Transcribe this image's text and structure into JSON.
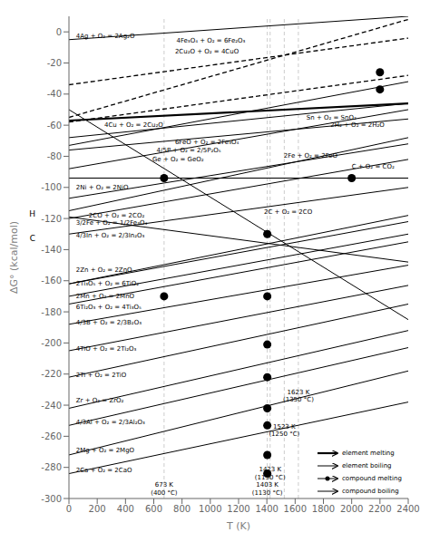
{
  "chart_data": {
    "type": "line",
    "xlabel": "T (K)",
    "ylabel": "ΔG° (kcal/mol)",
    "xlim": [
      0,
      2400
    ],
    "ylim": [
      -300,
      10
    ],
    "xticks": [
      0,
      200,
      400,
      600,
      800,
      1000,
      1200,
      1400,
      1600,
      1800,
      2000,
      2200,
      2400
    ],
    "yticks": [
      0,
      -20,
      -40,
      -60,
      -80,
      -100,
      -120,
      -140,
      -160,
      -180,
      -200,
      -220,
      -240,
      -260,
      -280,
      -300
    ],
    "grid": false,
    "color": "#000000",
    "series": [
      {
        "x": [
          0,
          2400
        ],
        "values": [
          -5,
          10
        ],
        "line_style": "solid"
      },
      {
        "x": [
          0,
          2400
        ],
        "values": [
          -34,
          -4
        ],
        "line_style": "dashed"
      },
      {
        "x": [
          0,
          2400
        ],
        "values": [
          -55,
          8
        ],
        "line_style": "dashed"
      },
      {
        "x": [
          0,
          2400
        ],
        "values": [
          -58,
          -28
        ],
        "line_style": "dashed"
      },
      {
        "x": [
          0,
          2400
        ],
        "values": [
          -73,
          -32
        ],
        "line_style": "solid"
      },
      {
        "x": [
          0,
          2400
        ],
        "values": [
          -68,
          -46
        ],
        "line_style": "solid"
      },
      {
        "x": [
          0,
          2400
        ],
        "values": [
          -57,
          -46
        ],
        "line_style": "bold"
      },
      {
        "x": [
          0,
          2400
        ],
        "values": [
          -76,
          -56
        ],
        "line_style": "solid"
      },
      {
        "x": [
          0,
          2400
        ],
        "values": [
          -88,
          -50
        ],
        "line_style": "solid"
      },
      {
        "x": [
          0,
          2400
        ],
        "values": [
          -115,
          -68
        ],
        "line_style": "solid"
      },
      {
        "x": [
          0,
          2400
        ],
        "values": [
          -94,
          -94
        ],
        "line_style": "solid"
      },
      {
        "x": [
          0,
          2400
        ],
        "values": [
          -107,
          -72
        ],
        "line_style": "solid"
      },
      {
        "x": [
          0,
          2400
        ],
        "values": [
          -119,
          -148
        ],
        "line_style": "solid"
      },
      {
        "x": [
          0,
          2400
        ],
        "values": [
          -50,
          -185
        ],
        "line_style": "solid"
      },
      {
        "x": [
          0,
          2400
        ],
        "values": [
          -120,
          -82
        ],
        "line_style": "solid"
      },
      {
        "x": [
          0,
          2400
        ],
        "values": [
          -130,
          -100
        ],
        "line_style": "solid"
      },
      {
        "x": [
          0,
          2400
        ],
        "values": [
          -162,
          -118
        ],
        "line_style": "solid"
      },
      {
        "x": [
          0,
          2400
        ],
        "values": [
          -162,
          -122
        ],
        "line_style": "solid"
      },
      {
        "x": [
          0,
          2400
        ],
        "values": [
          -170,
          -130
        ],
        "line_style": "solid"
      },
      {
        "x": [
          0,
          2400
        ],
        "values": [
          -175,
          -135
        ],
        "line_style": "solid"
      },
      {
        "x": [
          0,
          2400
        ],
        "values": [
          -188,
          -150
        ],
        "line_style": "solid"
      },
      {
        "x": [
          0,
          2400
        ],
        "values": [
          -205,
          -163
        ],
        "line_style": "solid"
      },
      {
        "x": [
          0,
          2400
        ],
        "values": [
          -222,
          -175
        ],
        "line_style": "solid"
      },
      {
        "x": [
          0,
          2400
        ],
        "values": [
          -242,
          -192
        ],
        "line_style": "solid"
      },
      {
        "x": [
          0,
          2400
        ],
        "values": [
          -253,
          -203
        ],
        "line_style": "solid"
      },
      {
        "x": [
          0,
          2400
        ],
        "values": [
          -272,
          -218
        ],
        "line_style": "solid"
      },
      {
        "x": [
          0,
          2400
        ],
        "values": [
          -284,
          -238
        ],
        "line_style": "solid"
      }
    ],
    "points": {
      "x": [
        673,
        673,
        1403,
        1403,
        1403,
        1403,
        1403,
        1403,
        1403,
        1403,
        2200,
        2200,
        2000
      ],
      "y": [
        -94,
        -170,
        -130,
        -170,
        -201,
        -222,
        -242,
        -253,
        -272,
        -284,
        -26,
        -37,
        -94
      ]
    },
    "hlines": [
      -94
    ],
    "vlines": [
      673,
      1403,
      1423,
      1523,
      1623
    ],
    "vline_labels": [
      {
        "x": 673,
        "y": -296,
        "text": "673 K\n(400 °C)"
      },
      {
        "x": 1403,
        "y": -296,
        "text": "1403 K\n(1130 °C)"
      },
      {
        "x": 1423,
        "y": -296,
        "text": "1423 K\n(1150 °C)"
      },
      {
        "x": 1523,
        "y": -252,
        "text": "1523 K\n(1250 °C)"
      },
      {
        "x": 1623,
        "y": -230,
        "text": "1623 K\n(1350 °C)"
      }
    ],
    "annotations": [
      {
        "text": "4Ag + O₂ = 2Ag₂O",
        "x": 50,
        "y": -3
      },
      {
        "text": "2Cu₂O + O₂ = 4CuO",
        "x": 750,
        "y": -13
      },
      {
        "text": "4Fe₃O₄ + O₂ = 6Fe₂O₃",
        "x": 760,
        "y": -6
      },
      {
        "text": "4Cu + O₂ = 2Cu₂O",
        "x": 250,
        "y": -60
      },
      {
        "text": "4/5P + O₂ = 2/5P₂O₅",
        "x": 620,
        "y": -76
      },
      {
        "text": "Sn + O₂ = SnO₂",
        "x": 1680,
        "y": -55
      },
      {
        "text": "2H₂ + O₂ = 2H₂O",
        "x": 1850,
        "y": -54
      },
      {
        "text": "Ge + O₂ = GeO₂",
        "x": 590,
        "y": -82
      },
      {
        "text": "6FeO + O₂ = 2Fe₃O₄",
        "x": 750,
        "y": -71
      },
      {
        "text": "2Fe + O₂ = 2FeO",
        "x": 1520,
        "y": -80
      },
      {
        "text": "C + O₂ = CO₂",
        "x": 2000,
        "y": -87
      },
      {
        "text": "2Ni + O₂ = 2NiO",
        "x": 50,
        "y": -100
      },
      {
        "text": "2CO + O₂ = 2CO₂",
        "x": 140,
        "y": -118
      },
      {
        "text": "2C + O₂ = 2CO",
        "x": 1380,
        "y": -116
      },
      {
        "text": "3/2Fe + O₂ = 1/2Fe₃O₄",
        "x": 50,
        "y": -121
      },
      {
        "text": "4/3In + O₂ = 2/3In₂O₃",
        "x": 50,
        "y": -131
      },
      {
        "text": "2Zn + O₂ = 2ZnO",
        "x": 50,
        "y": -153
      },
      {
        "text": "2Ti₃O₅ + O₂ = 6TiO₂",
        "x": 50,
        "y": -162
      },
      {
        "text": "2Mn + O₂ = 2MnO",
        "x": 50,
        "y": -170
      },
      {
        "text": "6Ti₂O₃ + O₂ = 4Ti₃O₅",
        "x": 50,
        "y": -177
      },
      {
        "text": "4/3B + O₂ = 2/3B₂O₃",
        "x": 50,
        "y": -187
      },
      {
        "text": "4TiO + O₂ = 2Ti₂O₃",
        "x": 50,
        "y": -204
      },
      {
        "text": "2Ti + O₂ = 2TiO",
        "x": 50,
        "y": -221
      },
      {
        "text": "Zr + O₂ = ZrO₂",
        "x": 50,
        "y": -237
      },
      {
        "text": "4/3Al + O₂ = 2/3Al₂O₃",
        "x": 50,
        "y": -251
      },
      {
        "text": "2Mg + O₂ = 2MgO",
        "x": 50,
        "y": -269
      },
      {
        "text": "2Ca + O₂ = 2CaO",
        "x": 50,
        "y": -282
      }
    ],
    "y_axis_marks": [
      {
        "text": "H",
        "value": -117
      },
      {
        "text": "C",
        "value": -133
      }
    ],
    "legend": "lower right",
    "legend_entries": [
      {
        "label": "element melting",
        "line_style": "bold"
      },
      {
        "label": "element boiling",
        "line_style": "solid"
      },
      {
        "label": "compound melting",
        "line_style": "solid",
        "marker": "dot"
      },
      {
        "label": "compound boiling",
        "line_style": "solid"
      }
    ]
  }
}
